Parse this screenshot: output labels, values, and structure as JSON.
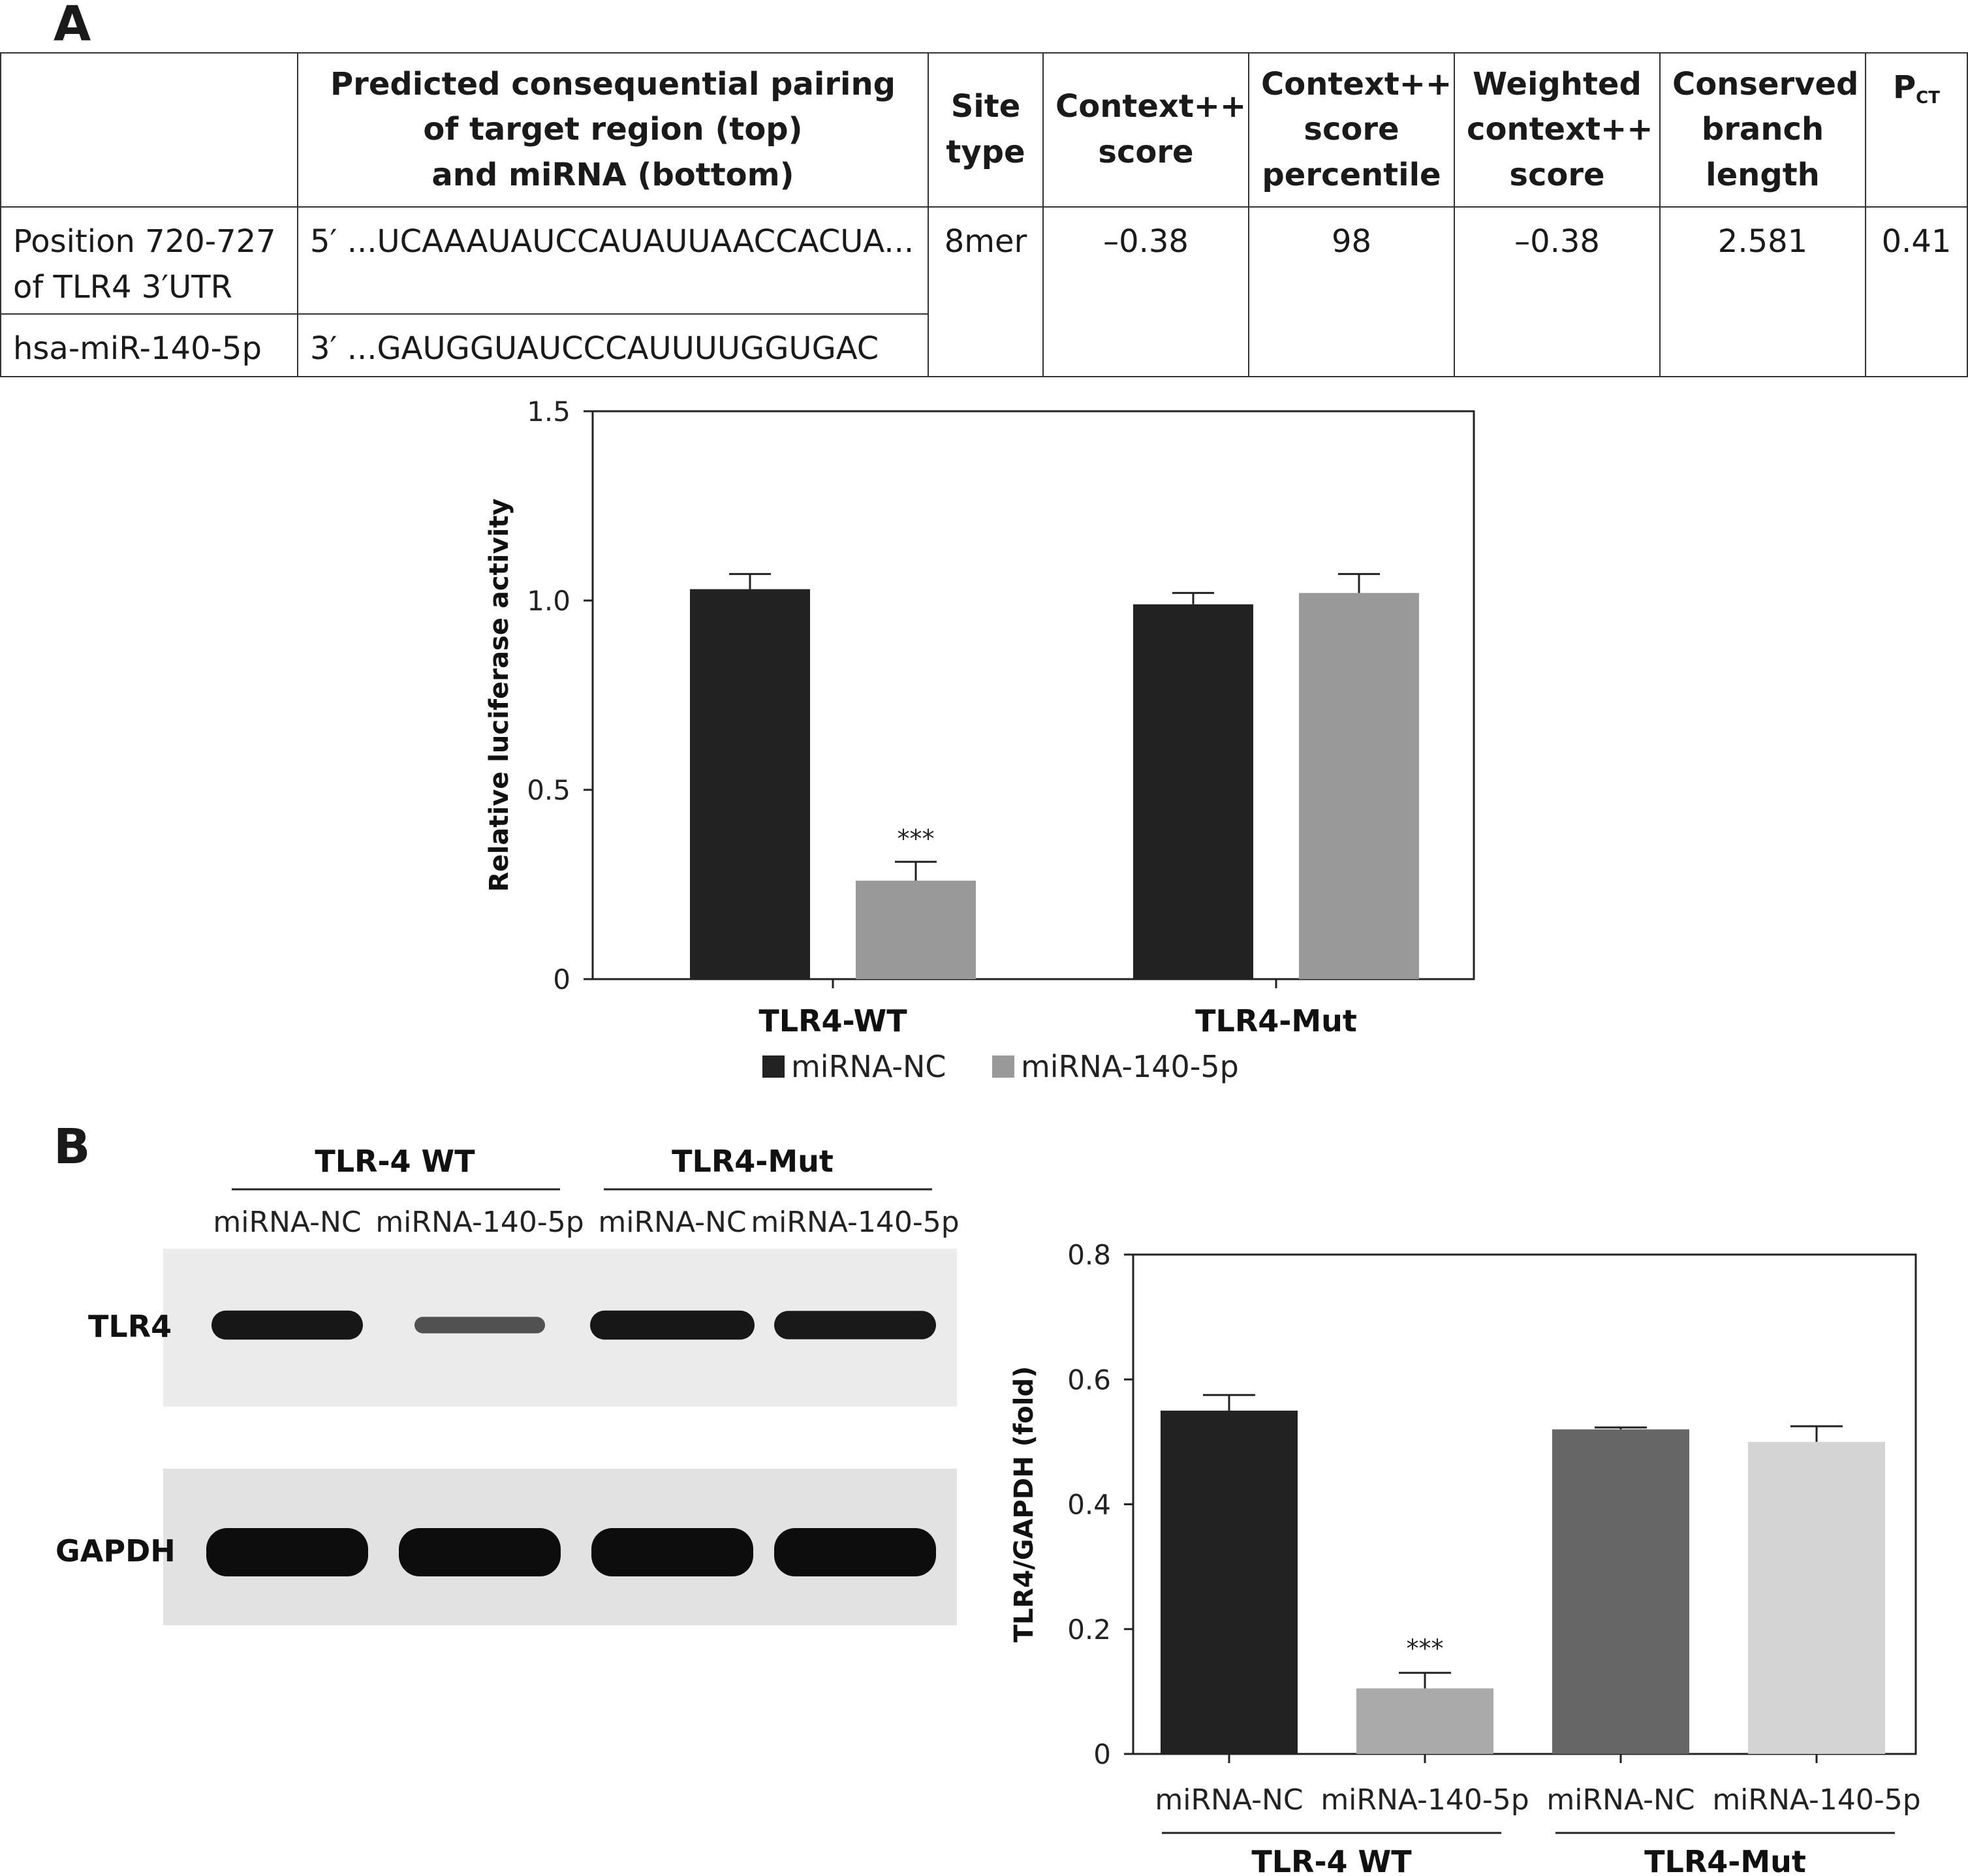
{
  "panel_a_label": "A",
  "panel_b_label": "B",
  "table": {
    "headers": {
      "empty": "",
      "pairing": "Predicted consequential pairing\nof target region (top)\nand miRNA (bottom)",
      "site_type": "Site\ntype",
      "context_score": "Context++\nscore",
      "context_percentile": "Context++\nscore\npercentile",
      "weighted": "Weighted\ncontext++\nscore",
      "branch": "Conserved\nbranch\nlength",
      "pct_main": "P",
      "pct_sub": "CT"
    },
    "row1": {
      "label": "Position 720-727 of TLR4 3′UTR",
      "sequence": "5′ ...UCAAAUAUCCAUAUUAACCACUA...",
      "site_type": "8mer",
      "context_score": "–0.38",
      "context_percentile": "98",
      "weighted": "–0.38",
      "branch": "2.581",
      "pct": "0.41"
    },
    "row2": {
      "label": "hsa-miR-140-5p",
      "sequence": "3′ ...GAUGGUAUCCCAUUUUGGUGAC"
    }
  },
  "western_blot": {
    "group1": "TLR-4 WT",
    "group2": "TLR4-Mut",
    "lanes": [
      "miRNA-NC",
      "miRNA-140-5p",
      "miRNA-NC",
      "miRNA-140-5p"
    ],
    "rows": [
      "TLR4",
      "GAPDH"
    ],
    "band_intensity_tlr4": [
      0.95,
      0.35,
      0.95,
      0.92
    ],
    "band_intensity_gapdh": [
      1,
      1,
      1,
      1
    ]
  },
  "chart_data": [
    {
      "type": "bar",
      "ylabel": "Relative luciferase activity",
      "ylim": [
        0,
        1.5
      ],
      "yticks": [
        "0",
        "0.5",
        "1.0",
        "1.5"
      ],
      "categories": [
        "TLR4-WT",
        "TLR4-Mut"
      ],
      "series": [
        {
          "name": "miRNA-NC",
          "color": "#222222",
          "values": [
            1.03,
            0.99
          ],
          "errors": [
            0.04,
            0.03
          ]
        },
        {
          "name": "miRNA-140-5p",
          "color": "#999999",
          "values": [
            0.26,
            1.02
          ],
          "errors": [
            0.05,
            0.05
          ]
        }
      ],
      "annotations": [
        {
          "category": "TLR4-WT",
          "series": "miRNA-140-5p",
          "text": "***"
        }
      ],
      "legend": "bottom"
    },
    {
      "type": "bar",
      "ylabel": "TLR4/GAPDH (fold)",
      "ylim": [
        0,
        0.8
      ],
      "yticks": [
        "0",
        "0.2",
        "0.4",
        "0.6",
        "0.8"
      ],
      "categories": [
        "miRNA-NC",
        "miRNA-140-5p",
        "miRNA-NC",
        "miRNA-140-5p"
      ],
      "groups": [
        "TLR-4 WT",
        "TLR4-Mut"
      ],
      "values": [
        0.55,
        0.105,
        0.52,
        0.5
      ],
      "errors": [
        0.025,
        0.025,
        0.003,
        0.025
      ],
      "colors": [
        "#222222",
        "#aaaaaa",
        "#666666",
        "#d4d4d4"
      ],
      "annotations": [
        {
          "index": 1,
          "text": "***"
        }
      ]
    }
  ]
}
